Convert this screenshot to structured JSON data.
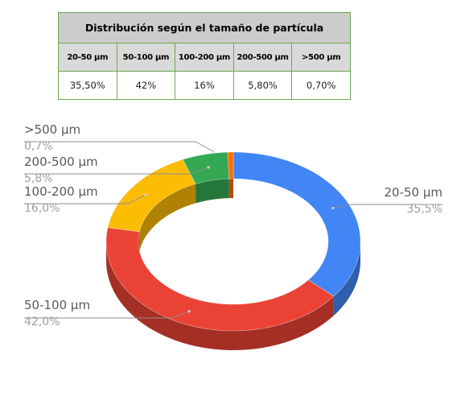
{
  "table": {
    "title": "Distribución según el tamaño de partícula",
    "headers": [
      "20-50 µm",
      "50-100 µm",
      "100-200 µm",
      "200-500 µm",
      ">500 µm"
    ],
    "values": [
      "35,50%",
      "42%",
      "16%",
      "5,80%",
      "0,70%"
    ]
  },
  "chart_data": {
    "type": "pie",
    "style": "3d-donut",
    "categories": [
      "20-50 µm",
      "50-100 µm",
      "100-200 µm",
      "200-500 µm",
      ">500 µm"
    ],
    "values": [
      35.5,
      42.0,
      16.0,
      5.8,
      0.7
    ],
    "value_labels": [
      "35,5%",
      "42,0%",
      "16,0%",
      "5,8%",
      "0,7%"
    ],
    "colors": [
      "#4285f4",
      "#ea4335",
      "#fbbc04",
      "#34a853",
      "#ff6d01"
    ],
    "side_colors": [
      "#2f5eaa",
      "#a52f25",
      "#b08203",
      "#24763a",
      "#b34c01"
    ],
    "legend": "none"
  }
}
